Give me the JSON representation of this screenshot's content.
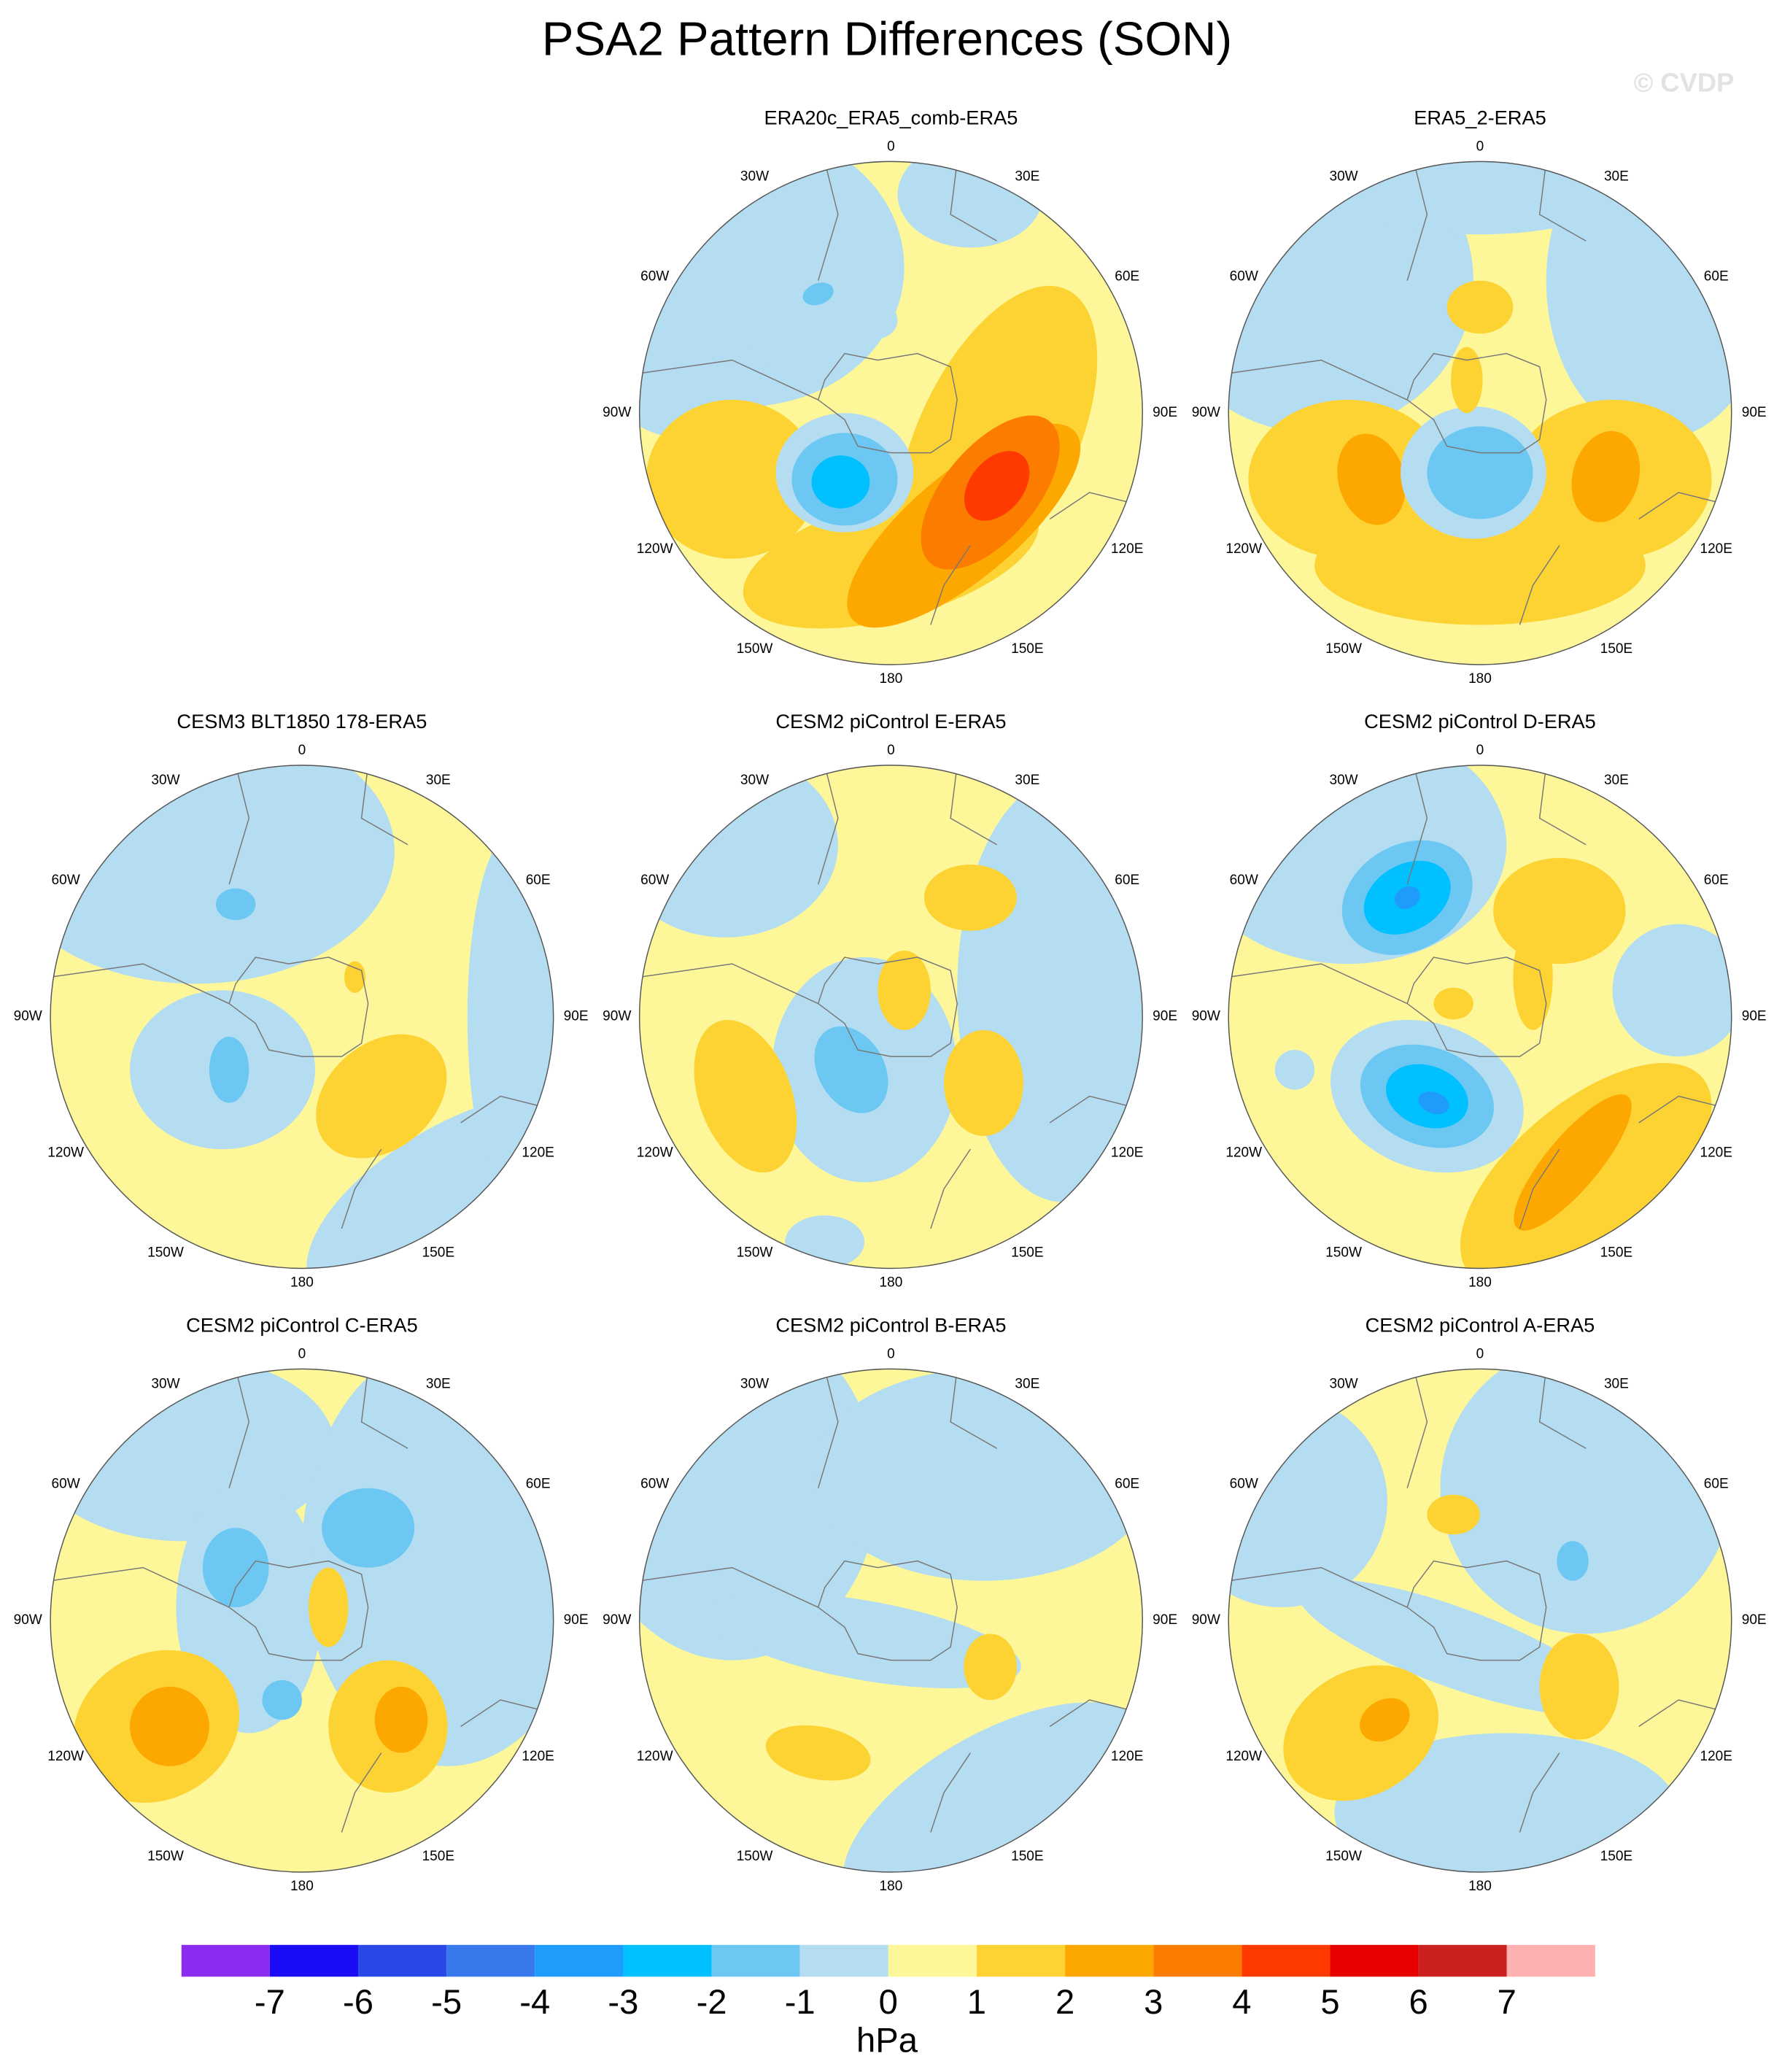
{
  "title": "PSA2 Pattern Differences (SON)",
  "watermark": "© CVDP",
  "longitude_labels": [
    "0",
    "30E",
    "60E",
    "90E",
    "120E",
    "150E",
    "180",
    "150W",
    "120W",
    "90W",
    "60W",
    "30W"
  ],
  "panels": [
    {
      "title": "ERA20c_ERA5_comb-ERA5"
    },
    {
      "title": "ERA5_2-ERA5"
    },
    {
      "title": "CESM3 BLT1850 178-ERA5"
    },
    {
      "title": "CESM2 piControl E-ERA5"
    },
    {
      "title": "CESM2 piControl D-ERA5"
    },
    {
      "title": "CESM2 piControl C-ERA5"
    },
    {
      "title": "CESM2 piControl B-ERA5"
    },
    {
      "title": "CESM2 piControl A-ERA5"
    }
  ],
  "colorbar": {
    "levels": [
      -7,
      -6,
      -5,
      -4,
      -3,
      -2,
      -1,
      0,
      1,
      2,
      3,
      4,
      5,
      6,
      7
    ],
    "colors": [
      "#8b2cf0",
      "#1a0cf5",
      "#2a48e8",
      "#3778ec",
      "#1f9bfb",
      "#00c0ff",
      "#6cc8f2",
      "#b4ddf1",
      "#fdf79a",
      "#fdd334",
      "#fda800",
      "#fc7c00",
      "#fe3a00",
      "#e80000",
      "#cc1f1f",
      "#ffb0b0"
    ],
    "unit": "hPa"
  }
}
